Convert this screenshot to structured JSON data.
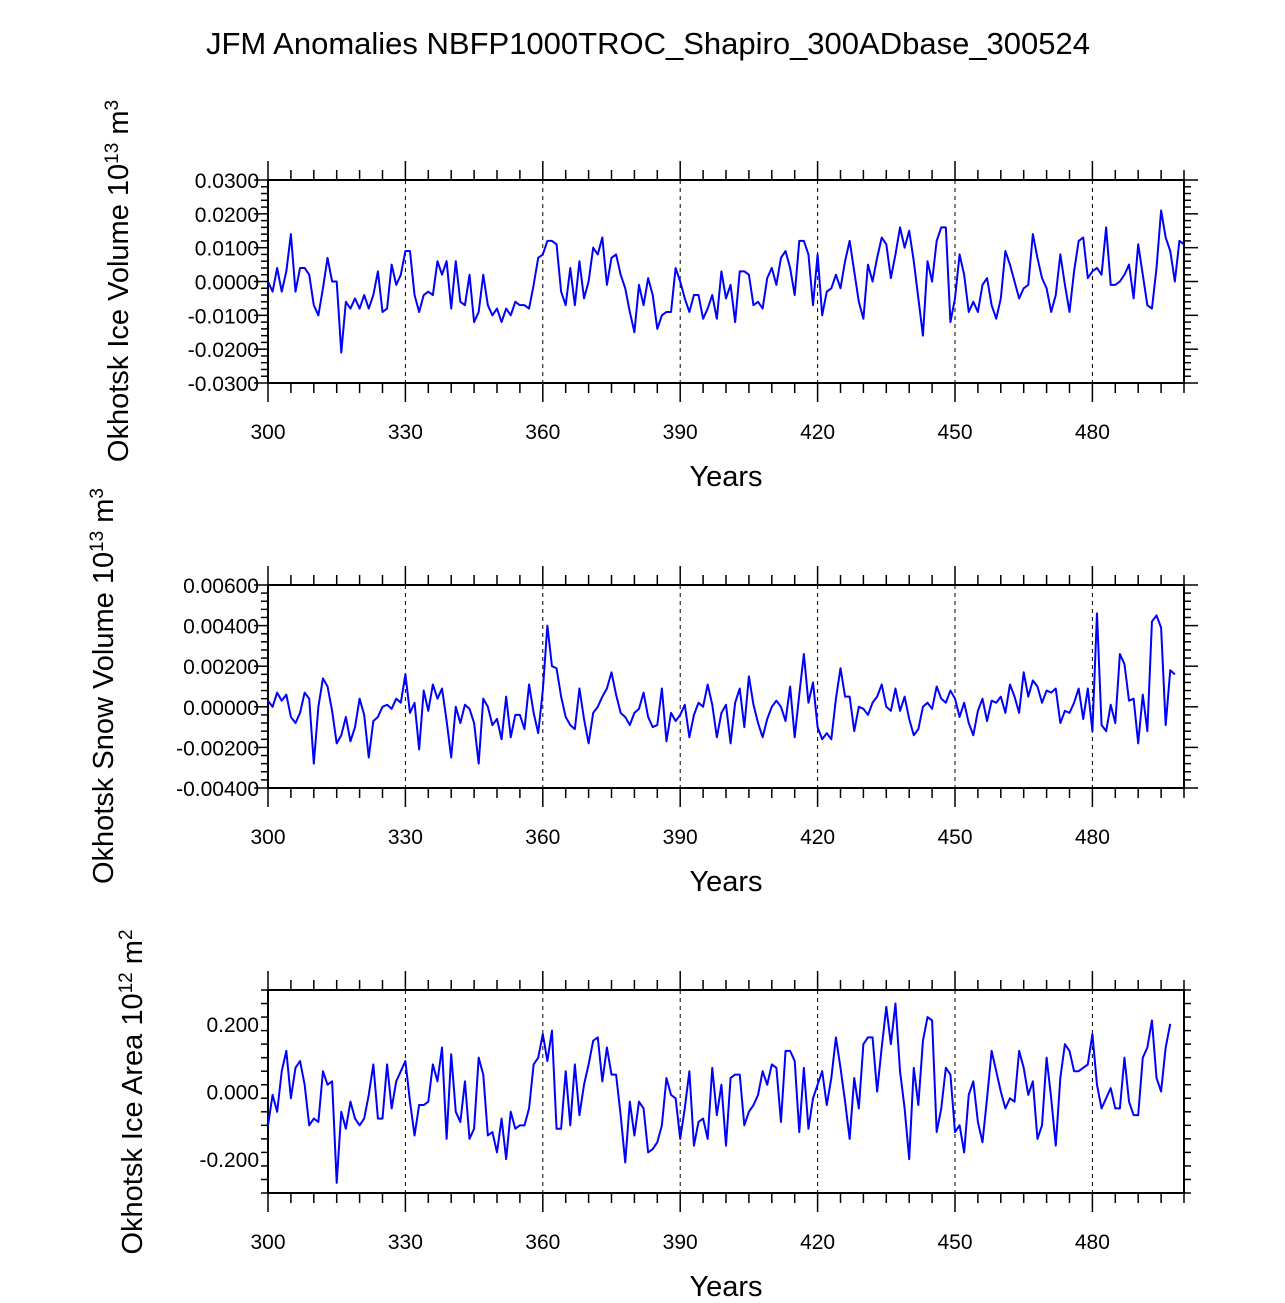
{
  "figure_title": "JFM Anomalies NBFP1000TROC_Shapiro_300ADbase_300524",
  "chart_data": [
    {
      "type": "line",
      "title": "JFM Anomalies NBFP1000TROC_Shapiro_300ADbase_300524",
      "xlabel": "Years",
      "ylabel_main": "Okhotsk Ice Volume 10",
      "ylabel_exp": "13",
      "ylabel_unit": " m",
      "ylabel_unit_exp": "3",
      "xlim": [
        300,
        500
      ],
      "ylim": [
        -0.03,
        0.03
      ],
      "xticks": [
        300,
        330,
        360,
        390,
        420,
        450,
        480
      ],
      "xtick_labels": [
        "300",
        "330",
        "360",
        "390",
        "420",
        "450",
        "480"
      ],
      "yticks": [
        -0.03,
        -0.02,
        -0.01,
        0.0,
        0.01,
        0.02,
        0.03
      ],
      "ytick_labels": [
        "-0.0300",
        "-0.0200",
        "-0.0100",
        "0.0000",
        "0.0100",
        "0.0200",
        "0.0300"
      ],
      "gridlines_x": [
        330,
        360,
        390,
        420,
        450,
        480
      ],
      "series": [
        {
          "name": "Okhotsk Ice Volume",
          "color": "#0000ff",
          "x_start": 300,
          "x_step": 1,
          "values": [
            0.0,
            -0.003,
            0.004,
            -0.003,
            0.003,
            0.014,
            -0.003,
            0.004,
            0.004,
            0.002,
            -0.007,
            -0.01,
            -0.002,
            0.007,
            0.0,
            0.0,
            -0.021,
            -0.006,
            -0.008,
            -0.005,
            -0.008,
            -0.004,
            -0.008,
            -0.004,
            0.003,
            -0.009,
            -0.008,
            0.005,
            -0.001,
            0.002,
            0.009,
            0.009,
            -0.004,
            -0.009,
            -0.004,
            -0.003,
            -0.004,
            0.006,
            0.002,
            0.006,
            -0.008,
            0.006,
            -0.006,
            -0.007,
            0.002,
            -0.012,
            -0.009,
            0.002,
            -0.007,
            -0.01,
            -0.008,
            -0.012,
            -0.008,
            -0.01,
            -0.006,
            -0.007,
            -0.007,
            -0.008,
            -0.001,
            0.007,
            0.008,
            0.012,
            0.012,
            0.011,
            -0.003,
            -0.007,
            0.004,
            -0.007,
            0.006,
            -0.005,
            0.0,
            0.01,
            0.008,
            0.013,
            -0.001,
            0.007,
            0.008,
            0.002,
            -0.002,
            -0.009,
            -0.015,
            -0.001,
            -0.007,
            0.001,
            -0.004,
            -0.014,
            -0.01,
            -0.009,
            -0.009,
            0.004,
            0.0,
            -0.005,
            -0.009,
            -0.004,
            -0.004,
            -0.011,
            -0.008,
            -0.004,
            -0.011,
            0.003,
            -0.005,
            -0.001,
            -0.012,
            0.003,
            0.003,
            0.002,
            -0.007,
            -0.006,
            -0.008,
            0.001,
            0.004,
            -0.001,
            0.007,
            0.009,
            0.004,
            -0.004,
            0.012,
            0.012,
            0.008,
            -0.007,
            0.008,
            -0.01,
            -0.003,
            -0.002,
            0.002,
            -0.002,
            0.006,
            0.012,
            0.003,
            -0.006,
            -0.011,
            0.005,
            0.0,
            0.007,
            0.013,
            0.011,
            0.001,
            0.008,
            0.016,
            0.01,
            0.015,
            0.006,
            -0.005,
            -0.016,
            0.006,
            0.0,
            0.012,
            0.016,
            0.016,
            -0.012,
            -0.005,
            0.008,
            0.002,
            -0.009,
            -0.006,
            -0.009,
            -0.001,
            0.001,
            -0.007,
            -0.011,
            -0.005,
            0.009,
            0.005,
            0.0,
            -0.005,
            -0.002,
            -0.001,
            0.014,
            0.007,
            0.001,
            -0.002,
            -0.009,
            -0.004,
            0.008,
            -0.001,
            -0.009,
            0.003,
            0.012,
            0.013,
            0.001,
            0.003,
            0.004,
            0.002,
            0.016,
            -0.001,
            -0.001,
            0.0,
            0.002,
            0.005,
            -0.005,
            0.011,
            0.002,
            -0.007,
            -0.008,
            0.004,
            0.021,
            0.013,
            0.009,
            0.0,
            0.012,
            0.011
          ]
        }
      ]
    },
    {
      "type": "line",
      "xlabel": "Years",
      "ylabel_main": "Okhotsk Snow Volume 10",
      "ylabel_exp": "13",
      "ylabel_unit": " m",
      "ylabel_unit_exp": "3",
      "xlim": [
        300,
        500
      ],
      "ylim": [
        -0.004,
        0.006
      ],
      "xticks": [
        300,
        330,
        360,
        390,
        420,
        450,
        480
      ],
      "xtick_labels": [
        "300",
        "330",
        "360",
        "390",
        "420",
        "450",
        "480"
      ],
      "yticks": [
        -0.004,
        -0.002,
        0.0,
        0.002,
        0.004,
        0.006
      ],
      "ytick_labels": [
        "-0.00400",
        "-0.00200",
        "0.00000",
        "0.00200",
        "0.00400",
        "0.00600"
      ],
      "gridlines_x": [
        330,
        360,
        390,
        420,
        450,
        480
      ],
      "series": [
        {
          "name": "Okhotsk Snow Volume",
          "color": "#0000ff",
          "x_start": 300,
          "x_step": 1,
          "values": [
            0.0003,
            0.0,
            0.0007,
            0.0003,
            0.0006,
            -0.0005,
            -0.0008,
            -0.0003,
            0.0007,
            0.0004,
            -0.0028,
            0.0,
            0.0014,
            0.001,
            -0.0002,
            -0.0018,
            -0.0014,
            -0.0005,
            -0.0017,
            -0.001,
            0.0004,
            -0.0004,
            -0.0025,
            -0.0007,
            -0.0005,
            0.0,
            0.0001,
            -0.0001,
            0.0004,
            0.0002,
            0.0016,
            -0.0003,
            0.0002,
            -0.0021,
            0.0008,
            -0.0002,
            0.0011,
            0.0004,
            0.0009,
            -0.0007,
            -0.0025,
            0.0,
            -0.0008,
            0.0001,
            -0.0001,
            -0.0008,
            -0.0028,
            0.0004,
            0.0,
            -0.0009,
            -0.0006,
            -0.0016,
            0.0005,
            -0.0015,
            -0.0004,
            -0.0004,
            -0.0011,
            0.0011,
            -0.0003,
            -0.0013,
            0.0008,
            0.004,
            0.002,
            0.0019,
            0.0005,
            -0.0005,
            -0.0009,
            -0.0011,
            0.0009,
            -0.0006,
            -0.0018,
            -0.0003,
            0.0,
            0.0005,
            0.0009,
            0.0017,
            0.0006,
            -0.0003,
            -0.0005,
            -0.0009,
            -0.0003,
            -0.0001,
            0.0007,
            -0.0005,
            -0.001,
            -0.0009,
            0.0009,
            -0.0017,
            -0.0003,
            -0.0007,
            -0.0004,
            0.0001,
            -0.0015,
            -0.0004,
            0.0002,
            0.0,
            0.0011,
            0.0001,
            -0.0015,
            -0.0003,
            0.0001,
            -0.0018,
            0.0002,
            0.0009,
            -0.001,
            0.0015,
            0.0001,
            -0.0008,
            -0.0015,
            -0.0006,
            0.0,
            0.0003,
            0.0,
            -0.0007,
            0.001,
            -0.0015,
            0.0006,
            0.0026,
            0.0002,
            0.0012,
            -0.001,
            -0.0016,
            -0.0013,
            -0.0016,
            0.0004,
            0.0019,
            0.0005,
            0.0005,
            -0.0012,
            0.0,
            -0.0001,
            -0.0004,
            0.0002,
            0.0005,
            0.0011,
            0.0,
            -0.0002,
            0.0009,
            -0.0002,
            0.0005,
            -0.0006,
            -0.0014,
            -0.0011,
            0.0,
            0.0002,
            -0.0001,
            0.001,
            0.0004,
            0.0002,
            0.0008,
            0.0004,
            -0.0005,
            0.0002,
            -0.0008,
            -0.0014,
            -0.0002,
            0.0004,
            -0.0007,
            0.0003,
            0.0002,
            0.0005,
            -0.0003,
            0.0011,
            0.0005,
            -0.0003,
            0.0017,
            0.0005,
            0.0013,
            0.001,
            0.0002,
            0.0008,
            0.0007,
            0.0009,
            -0.0008,
            -0.0002,
            -0.0003,
            0.0002,
            0.0009,
            -0.0006,
            0.0009,
            -0.0012,
            0.0046,
            -0.0009,
            -0.0012,
            0.0001,
            -0.0008,
            0.0026,
            0.0021,
            0.0003,
            0.0004,
            -0.0018,
            0.0006,
            -0.0012,
            0.0042,
            0.0045,
            0.0039,
            -0.0009,
            0.0018,
            0.0016
          ]
        }
      ]
    },
    {
      "type": "line",
      "xlabel": "Years",
      "ylabel_main": "Okhotsk Ice Area 10",
      "ylabel_exp": "12",
      "ylabel_unit": " m",
      "ylabel_unit_exp": "2",
      "xlim": [
        300,
        500
      ],
      "ylim": [
        -0.3,
        0.3
      ],
      "xticks": [
        300,
        330,
        360,
        390,
        420,
        450,
        480
      ],
      "xtick_labels": [
        "300",
        "330",
        "360",
        "390",
        "420",
        "450",
        "480"
      ],
      "yticks": [
        -0.2,
        0.0,
        0.2
      ],
      "ytick_labels": [
        "-0.200",
        "0.000",
        "0.200"
      ],
      "gridlines_x": [
        330,
        360,
        390,
        420,
        450,
        480
      ],
      "series": [
        {
          "name": "Okhotsk Ice Area",
          "color": "#0000ff",
          "x_start": 300,
          "x_step": 1,
          "values": [
            -0.1,
            -0.01,
            -0.06,
            0.06,
            0.12,
            -0.02,
            0.07,
            0.09,
            0.02,
            -0.1,
            -0.08,
            -0.09,
            0.06,
            0.02,
            0.03,
            -0.27,
            -0.06,
            -0.11,
            -0.03,
            -0.08,
            -0.1,
            -0.08,
            -0.01,
            0.08,
            -0.08,
            -0.08,
            0.08,
            -0.05,
            0.03,
            0.06,
            0.09,
            -0.03,
            -0.13,
            -0.04,
            -0.04,
            -0.03,
            0.08,
            0.03,
            0.13,
            -0.14,
            0.11,
            -0.06,
            -0.09,
            0.03,
            -0.14,
            -0.11,
            0.1,
            0.05,
            -0.13,
            -0.12,
            -0.18,
            -0.08,
            -0.2,
            -0.06,
            -0.11,
            -0.1,
            -0.1,
            -0.05,
            0.08,
            0.1,
            0.17,
            0.09,
            0.18,
            -0.11,
            -0.11,
            0.06,
            -0.1,
            0.08,
            -0.07,
            0.02,
            0.08,
            0.15,
            0.16,
            0.03,
            0.13,
            0.05,
            0.05,
            -0.07,
            -0.21,
            -0.03,
            -0.13,
            -0.03,
            -0.05,
            -0.18,
            -0.17,
            -0.15,
            -0.1,
            0.04,
            -0.01,
            -0.02,
            -0.14,
            -0.05,
            0.06,
            -0.16,
            -0.09,
            -0.08,
            -0.14,
            0.07,
            -0.07,
            0.02,
            -0.16,
            0.04,
            0.05,
            0.05,
            -0.1,
            -0.06,
            -0.04,
            -0.01,
            0.06,
            0.02,
            0.08,
            0.07,
            -0.09,
            0.12,
            0.12,
            0.09,
            -0.12,
            0.07,
            -0.11,
            -0.02,
            0.02,
            0.06,
            -0.04,
            0.04,
            0.16,
            0.07,
            -0.03,
            -0.14,
            0.04,
            -0.05,
            0.14,
            0.16,
            0.16,
            0.0,
            0.13,
            0.25,
            0.14,
            0.26,
            0.06,
            -0.05,
            -0.2,
            0.07,
            -0.04,
            0.15,
            0.22,
            0.21,
            -0.12,
            -0.05,
            0.07,
            0.05,
            -0.12,
            -0.1,
            -0.18,
            -0.01,
            0.03,
            -0.09,
            -0.15,
            -0.02,
            0.12,
            0.06,
            0.0,
            -0.05,
            -0.02,
            -0.03,
            0.12,
            0.07,
            -0.01,
            0.03,
            -0.14,
            -0.1,
            0.1,
            -0.02,
            -0.16,
            0.04,
            0.14,
            0.12,
            0.06,
            0.06,
            0.07,
            0.08,
            0.17,
            0.02,
            -0.05,
            -0.02,
            0.01,
            -0.05,
            -0.05,
            0.1,
            -0.03,
            -0.07,
            -0.07,
            0.1,
            0.13,
            0.21,
            0.04,
            0.0,
            0.13,
            0.2
          ]
        }
      ]
    }
  ]
}
